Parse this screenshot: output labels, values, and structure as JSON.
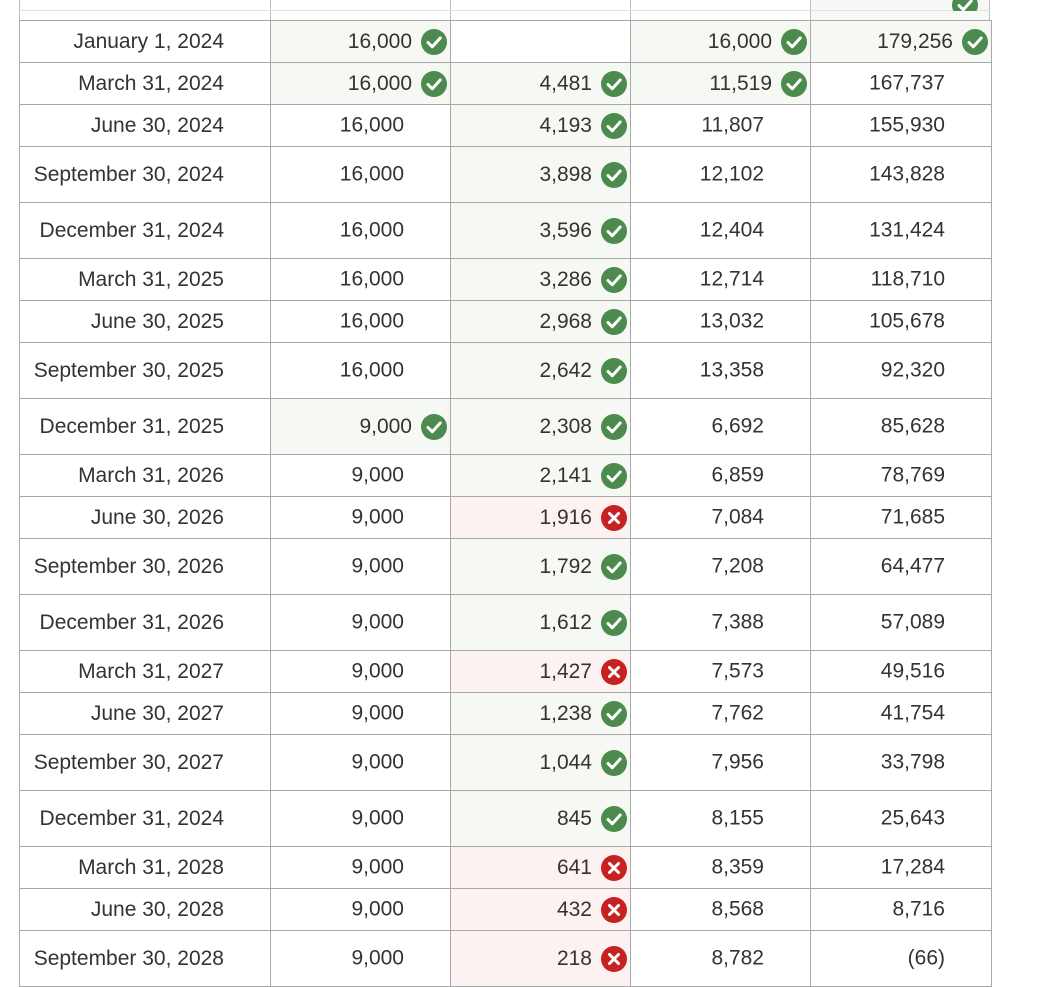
{
  "colors": {
    "correct": "#4d8a4d",
    "incorrect": "#c62222",
    "correct_bg": "#f6f8f4",
    "incorrect_bg": "#fdf2f2",
    "border": "#a8a8a8"
  },
  "icons": {
    "correct": "check-circle-icon",
    "incorrect": "x-circle-icon"
  },
  "rows": [
    {
      "date": "January 1, 2024",
      "c1": "16,000",
      "c1_mark": "correct",
      "c2": "",
      "c2_mark": "",
      "c3": "16,000",
      "c3_mark": "correct",
      "c4": "179,256",
      "c4_mark": "correct"
    },
    {
      "date": "March 31, 2024",
      "c1": "16,000",
      "c1_mark": "correct",
      "c2": "4,481",
      "c2_mark": "correct",
      "c3": "11,519",
      "c3_mark": "correct",
      "c4": "167,737",
      "c4_mark": ""
    },
    {
      "date": "June 30, 2024",
      "c1": "16,000",
      "c1_mark": "",
      "c2": "4,193",
      "c2_mark": "correct",
      "c3": "11,807",
      "c3_mark": "",
      "c4": "155,930",
      "c4_mark": ""
    },
    {
      "date": "September 30, 2024",
      "c1": "16,000",
      "c1_mark": "",
      "c2": "3,898",
      "c2_mark": "correct",
      "c3": "12,102",
      "c3_mark": "",
      "c4": "143,828",
      "c4_mark": ""
    },
    {
      "date": "December 31, 2024",
      "c1": "16,000",
      "c1_mark": "",
      "c2": "3,596",
      "c2_mark": "correct",
      "c3": "12,404",
      "c3_mark": "",
      "c4": "131,424",
      "c4_mark": ""
    },
    {
      "date": "March 31, 2025",
      "c1": "16,000",
      "c1_mark": "",
      "c2": "3,286",
      "c2_mark": "correct",
      "c3": "12,714",
      "c3_mark": "",
      "c4": "118,710",
      "c4_mark": ""
    },
    {
      "date": "June 30, 2025",
      "c1": "16,000",
      "c1_mark": "",
      "c2": "2,968",
      "c2_mark": "correct",
      "c3": "13,032",
      "c3_mark": "",
      "c4": "105,678",
      "c4_mark": ""
    },
    {
      "date": "September 30, 2025",
      "c1": "16,000",
      "c1_mark": "",
      "c2": "2,642",
      "c2_mark": "correct",
      "c3": "13,358",
      "c3_mark": "",
      "c4": "92,320",
      "c4_mark": ""
    },
    {
      "date": "December 31, 2025",
      "c1": "9,000",
      "c1_mark": "correct",
      "c2": "2,308",
      "c2_mark": "correct",
      "c3": "6,692",
      "c3_mark": "",
      "c4": "85,628",
      "c4_mark": ""
    },
    {
      "date": "March 31, 2026",
      "c1": "9,000",
      "c1_mark": "",
      "c2": "2,141",
      "c2_mark": "correct",
      "c3": "6,859",
      "c3_mark": "",
      "c4": "78,769",
      "c4_mark": ""
    },
    {
      "date": "June 30, 2026",
      "c1": "9,000",
      "c1_mark": "",
      "c2": "1,916",
      "c2_mark": "incorrect",
      "c3": "7,084",
      "c3_mark": "",
      "c4": "71,685",
      "c4_mark": ""
    },
    {
      "date": "September 30, 2026",
      "c1": "9,000",
      "c1_mark": "",
      "c2": "1,792",
      "c2_mark": "correct",
      "c3": "7,208",
      "c3_mark": "",
      "c4": "64,477",
      "c4_mark": ""
    },
    {
      "date": "December 31, 2026",
      "c1": "9,000",
      "c1_mark": "",
      "c2": "1,612",
      "c2_mark": "correct",
      "c3": "7,388",
      "c3_mark": "",
      "c4": "57,089",
      "c4_mark": ""
    },
    {
      "date": "March 31, 2027",
      "c1": "9,000",
      "c1_mark": "",
      "c2": "1,427",
      "c2_mark": "incorrect",
      "c3": "7,573",
      "c3_mark": "",
      "c4": "49,516",
      "c4_mark": ""
    },
    {
      "date": "June 30, 2027",
      "c1": "9,000",
      "c1_mark": "",
      "c2": "1,238",
      "c2_mark": "correct",
      "c3": "7,762",
      "c3_mark": "",
      "c4": "41,754",
      "c4_mark": ""
    },
    {
      "date": "September 30, 2027",
      "c1": "9,000",
      "c1_mark": "",
      "c2": "1,044",
      "c2_mark": "correct",
      "c3": "7,956",
      "c3_mark": "",
      "c4": "33,798",
      "c4_mark": ""
    },
    {
      "date": "December 31, 2024",
      "c1": "9,000",
      "c1_mark": "",
      "c2": "845",
      "c2_mark": "correct",
      "c3": "8,155",
      "c3_mark": "",
      "c4": "25,643",
      "c4_mark": ""
    },
    {
      "date": "March 31, 2028",
      "c1": "9,000",
      "c1_mark": "",
      "c2": "641",
      "c2_mark": "incorrect",
      "c3": "8,359",
      "c3_mark": "",
      "c4": "17,284",
      "c4_mark": ""
    },
    {
      "date": "June 30, 2028",
      "c1": "9,000",
      "c1_mark": "",
      "c2": "432",
      "c2_mark": "incorrect",
      "c3": "8,568",
      "c3_mark": "",
      "c4": "8,716",
      "c4_mark": ""
    },
    {
      "date": "September 30, 2028",
      "c1": "9,000",
      "c1_mark": "",
      "c2": "218",
      "c2_mark": "incorrect",
      "c3": "8,782",
      "c3_mark": "",
      "c4": "(66)",
      "c4_mark": ""
    }
  ]
}
